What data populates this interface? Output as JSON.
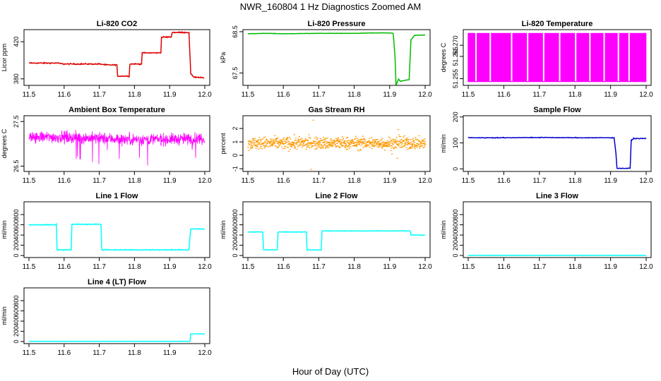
{
  "figure": {
    "title": "NWR_160804  1 Hz Diagnostics Zoomed AM",
    "xlabel": "Hour of Day (UTC)"
  },
  "chart_data": [
    {
      "type": "line",
      "title": "Li-820 CO2",
      "ylabel": "Licor ppm",
      "color": "#dd0000",
      "xlim": [
        11.5,
        12.0
      ],
      "ylim": [
        373,
        433
      ],
      "yticks": [
        380,
        420
      ],
      "ytick_labels": [
        "380",
        "420"
      ],
      "xticks": [
        11.5,
        11.6,
        11.7,
        11.8,
        11.9,
        12.0
      ],
      "series": [
        {
          "x": [
            11.5,
            11.58,
            11.6,
            11.7,
            11.72,
            11.75,
            11.752,
            11.785,
            11.787,
            11.82,
            11.822,
            11.875,
            11.877,
            11.905,
            11.907,
            11.955,
            11.96,
            11.97,
            11.998
          ],
          "y": [
            397,
            397,
            396,
            396,
            395,
            395,
            383,
            383,
            396,
            396,
            408,
            408,
            425,
            425,
            430,
            430,
            385,
            382,
            381
          ]
        }
      ]
    },
    {
      "type": "line",
      "title": "Li-820 Pressure",
      "ylabel": "kPa",
      "color": "#00bb00",
      "xlim": [
        11.5,
        12.0
      ],
      "ylim": [
        67.2,
        68.55
      ],
      "yticks": [
        67.5,
        68.5
      ],
      "ytick_labels": [
        "67.5",
        "68.5"
      ],
      "xticks": [
        11.5,
        11.6,
        11.7,
        11.8,
        11.9,
        12.0
      ],
      "series": [
        {
          "x": [
            11.5,
            11.55,
            11.6,
            11.7,
            11.8,
            11.85,
            11.9,
            11.91,
            11.915,
            11.918,
            11.925,
            11.93,
            11.955,
            11.96,
            11.97,
            12.0
          ],
          "y": [
            68.45,
            68.46,
            68.45,
            68.46,
            68.46,
            68.47,
            68.47,
            68.46,
            67.9,
            67.2,
            67.35,
            67.3,
            67.34,
            68.3,
            68.41,
            68.42
          ]
        }
      ]
    },
    {
      "type": "line",
      "title": "Li-820 Temperature",
      "ylabel": "degrees C",
      "color": "#ff00ff",
      "xlim": [
        11.5,
        12.0
      ],
      "ylim": [
        51.252,
        51.277
      ],
      "yticks": [
        51.255,
        51.265,
        51.27
      ],
      "ytick_labels": [
        "51.255",
        "51.265",
        "51.270"
      ],
      "xticks": [
        11.5,
        11.6,
        11.7,
        11.8,
        11.9,
        12.0
      ],
      "series": [
        {
          "x": [
            11.5,
            12.0
          ],
          "y": [
            51.2535,
            51.2755
          ]
        }
      ]
    },
    {
      "type": "line",
      "title": "Ambient Box Temperature",
      "ylabel": "degrees C",
      "color": "#ff00ff",
      "xlim": [
        11.5,
        12.0
      ],
      "ylim": [
        26.38,
        27.63
      ],
      "yticks": [
        26.5,
        27.5
      ],
      "ytick_labels": [
        "26.5",
        "27.5"
      ],
      "xticks": [
        11.5,
        11.6,
        11.7,
        11.8,
        11.9,
        12.0
      ],
      "series": [
        {
          "x": [
            11.5,
            11.6,
            11.7,
            11.8,
            11.9,
            12.0
          ],
          "y": [
            27.15,
            27.15,
            27.12,
            27.1,
            27.1,
            27.12
          ]
        }
      ]
    },
    {
      "type": "scatter",
      "title": "Gas Stream RH",
      "ylabel": "percent",
      "color": "#ff9900",
      "xlim": [
        11.5,
        12.0
      ],
      "ylim": [
        -1.2,
        2.95
      ],
      "yticks": [
        -1,
        0,
        1,
        2
      ],
      "ytick_labels": [
        "-1",
        "0",
        "1",
        "2"
      ],
      "xticks": [
        11.5,
        11.6,
        11.7,
        11.8,
        11.9,
        12.0
      ],
      "series": [
        {
          "x": [
            11.5,
            12.0
          ],
          "y": [
            0.9,
            0.9
          ]
        }
      ]
    },
    {
      "type": "line",
      "title": "Sample Flow",
      "ylabel": "ml/min",
      "color": "#0000cc",
      "xlim": [
        11.5,
        12.0
      ],
      "ylim": [
        -10,
        205
      ],
      "yticks": [
        0,
        100,
        200
      ],
      "ytick_labels": [
        "0",
        "100",
        "200"
      ],
      "xticks": [
        11.5,
        11.6,
        11.7,
        11.8,
        11.9,
        12.0
      ],
      "series": [
        {
          "x": [
            11.5,
            11.6,
            11.7,
            11.8,
            11.91,
            11.915,
            11.918,
            11.955,
            11.958,
            11.965,
            12.0
          ],
          "y": [
            120,
            120,
            121,
            120,
            120,
            60,
            2,
            2,
            110,
            117,
            117
          ]
        }
      ]
    },
    {
      "type": "line",
      "title": "Line 1 Flow",
      "ylabel": "ml/min",
      "color": "#00ffff",
      "xlim": [
        11.5,
        12.0
      ],
      "ylim": [
        -40,
        1050
      ],
      "yticks": [
        0,
        200,
        400,
        600,
        800
      ],
      "ytick_labels": [
        "0",
        "200",
        "400",
        "600",
        "800"
      ],
      "xticks": [
        11.5,
        11.6,
        11.7,
        11.8,
        11.9,
        12.0
      ],
      "series": [
        {
          "x": [
            11.5,
            11.578,
            11.58,
            11.62,
            11.622,
            11.705,
            11.707,
            11.955,
            11.957,
            11.96,
            12.0
          ],
          "y": [
            600,
            600,
            110,
            110,
            610,
            610,
            110,
            110,
            300,
            520,
            520
          ]
        }
      ]
    },
    {
      "type": "line",
      "title": "Line 2 Flow",
      "ylabel": "ml/min",
      "color": "#00ffff",
      "xlim": [
        11.5,
        12.0
      ],
      "ylim": [
        -40,
        1050
      ],
      "yticks": [
        0,
        200,
        400,
        600,
        800
      ],
      "ytick_labels": [
        "0",
        "200",
        "400",
        "600",
        "800"
      ],
      "xticks": [
        11.5,
        11.6,
        11.7,
        11.8,
        11.9,
        12.0
      ],
      "series": [
        {
          "x": [
            11.5,
            11.542,
            11.544,
            11.583,
            11.585,
            11.665,
            11.667,
            11.707,
            11.709,
            11.958,
            11.96,
            12.0
          ],
          "y": [
            460,
            460,
            110,
            110,
            460,
            460,
            110,
            110,
            480,
            480,
            400,
            400
          ]
        }
      ]
    },
    {
      "type": "line",
      "title": "Line 3 Flow",
      "ylabel": "ml/min",
      "color": "#00ffff",
      "xlim": [
        11.5,
        12.0
      ],
      "ylim": [
        -40,
        1050
      ],
      "yticks": [
        0,
        200,
        400,
        600,
        800
      ],
      "ytick_labels": [
        "0",
        "200",
        "400",
        "600",
        "800"
      ],
      "xticks": [
        11.5,
        11.6,
        11.7,
        11.8,
        11.9,
        12.0
      ],
      "series": [
        {
          "x": [
            11.5,
            12.0
          ],
          "y": [
            2,
            2
          ]
        }
      ]
    },
    {
      "type": "line",
      "title": "Line 4 (LT) Flow",
      "ylabel": "ml/min",
      "color": "#00ffff",
      "xlim": [
        11.5,
        12.0
      ],
      "ylim": [
        -40,
        1050
      ],
      "yticks": [
        0,
        200,
        400,
        600,
        800
      ],
      "ytick_labels": [
        "0",
        "200",
        "400",
        "600",
        "800"
      ],
      "xticks": [
        11.5,
        11.6,
        11.7,
        11.8,
        11.9,
        12.0
      ],
      "series": [
        {
          "x": [
            11.5,
            11.958,
            11.96,
            12.0
          ],
          "y": [
            5,
            5,
            150,
            150
          ]
        }
      ]
    }
  ]
}
